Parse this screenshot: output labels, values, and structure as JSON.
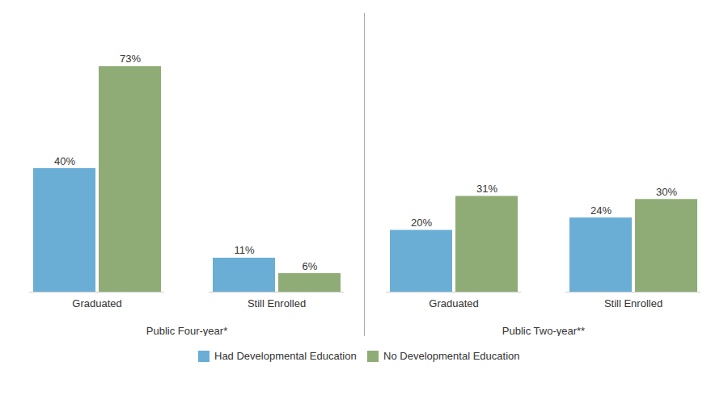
{
  "chart_data": [
    {
      "type": "bar",
      "x_label": "Public Four-year*",
      "categories": [
        "Graduated",
        "Still Enrolled"
      ],
      "series": [
        {
          "name": "Had Developmental Education",
          "color": "#6aaed6",
          "values": [
            40,
            11
          ],
          "value_labels": [
            "40%",
            "11%"
          ]
        },
        {
          "name": "No Developmental Education",
          "color": "#8fac76",
          "values": [
            73,
            6
          ],
          "value_labels": [
            "73%",
            "6%"
          ]
        }
      ],
      "ylim": [
        0,
        85
      ],
      "data_labels": true,
      "tick_labels": "x",
      "grid": false,
      "legend": "bottom"
    },
    {
      "type": "bar",
      "x_label": "Public Two-year**",
      "categories": [
        "Graduated",
        "Still Enrolled"
      ],
      "series": [
        {
          "name": "Had Developmental Education",
          "color": "#6aaed6",
          "values": [
            20,
            24
          ],
          "value_labels": [
            "20%",
            "24%"
          ]
        },
        {
          "name": "No Developmental Education",
          "color": "#8fac76",
          "values": [
            31,
            30
          ],
          "value_labels": [
            "31%",
            "30%"
          ]
        }
      ],
      "ylim": [
        0,
        85
      ],
      "data_labels": true,
      "tick_labels": "x",
      "grid": false,
      "legend": "bottom"
    }
  ]
}
